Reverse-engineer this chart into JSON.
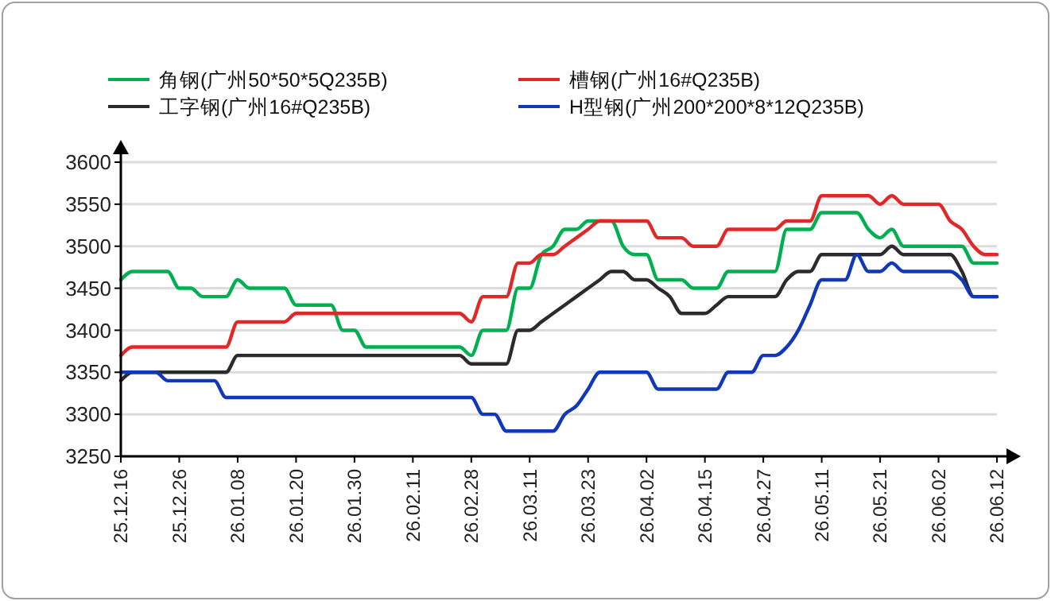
{
  "chart_data": {
    "type": "line",
    "categories": [
      "25.12.16",
      null,
      null,
      null,
      null,
      "25.12.26",
      null,
      null,
      null,
      null,
      "26.01.08",
      null,
      null,
      null,
      null,
      "26.01.20",
      null,
      null,
      null,
      null,
      "26.01.30",
      null,
      null,
      null,
      null,
      "26.02.11",
      null,
      null,
      null,
      null,
      "26.02.28",
      null,
      null,
      null,
      null,
      "26.03.11",
      null,
      null,
      null,
      null,
      "26.03.23",
      null,
      null,
      null,
      null,
      "26.04.02",
      null,
      null,
      null,
      null,
      "26.04.15",
      null,
      null,
      null,
      null,
      "26.04.27",
      null,
      null,
      null,
      null,
      "26.05.11",
      null,
      null,
      null,
      null,
      "26.05.21",
      null,
      null,
      null,
      null,
      "26.06.02",
      null,
      null,
      null,
      null,
      "26.06.12"
    ],
    "series": [
      {
        "name": "角钢(广州50*50*5Q235B)",
        "color": "#00b050",
        "values": [
          3460,
          3470,
          3470,
          3470,
          3470,
          3450,
          3450,
          3440,
          3440,
          3440,
          3460,
          3450,
          3450,
          3450,
          3450,
          3430,
          3430,
          3430,
          3430,
          3400,
          3400,
          3380,
          3380,
          3380,
          3380,
          3380,
          3380,
          3380,
          3380,
          3380,
          3370,
          3400,
          3400,
          3400,
          3450,
          3450,
          3490,
          3500,
          3520,
          3520,
          3530,
          3530,
          3530,
          3500,
          3490,
          3490,
          3460,
          3460,
          3460,
          3450,
          3450,
          3450,
          3470,
          3470,
          3470,
          3470,
          3470,
          3520,
          3520,
          3520,
          3540,
          3540,
          3540,
          3540,
          3520,
          3510,
          3520,
          3500,
          3500,
          3500,
          3500,
          3500,
          3500,
          3480,
          3480,
          3480
        ]
      },
      {
        "name": "槽钢(广州16#Q235B)",
        "color": "#e02828",
        "values": [
          3370,
          3380,
          3380,
          3380,
          3380,
          3380,
          3380,
          3380,
          3380,
          3380,
          3410,
          3410,
          3410,
          3410,
          3410,
          3420,
          3420,
          3420,
          3420,
          3420,
          3420,
          3420,
          3420,
          3420,
          3420,
          3420,
          3420,
          3420,
          3420,
          3420,
          3410,
          3440,
          3440,
          3440,
          3480,
          3480,
          3490,
          3490,
          3500,
          3510,
          3520,
          3530,
          3530,
          3530,
          3530,
          3530,
          3510,
          3510,
          3510,
          3500,
          3500,
          3500,
          3520,
          3520,
          3520,
          3520,
          3520,
          3530,
          3530,
          3530,
          3560,
          3560,
          3560,
          3560,
          3560,
          3550,
          3560,
          3550,
          3550,
          3550,
          3550,
          3530,
          3520,
          3500,
          3490,
          3490
        ]
      },
      {
        "name": "工字钢(广州16#Q235B)",
        "color": "#2b2b2b",
        "values": [
          3340,
          3350,
          3350,
          3350,
          3350,
          3350,
          3350,
          3350,
          3350,
          3350,
          3370,
          3370,
          3370,
          3370,
          3370,
          3370,
          3370,
          3370,
          3370,
          3370,
          3370,
          3370,
          3370,
          3370,
          3370,
          3370,
          3370,
          3370,
          3370,
          3370,
          3360,
          3360,
          3360,
          3360,
          3400,
          3400,
          3410,
          3420,
          3430,
          3440,
          3450,
          3460,
          3470,
          3470,
          3460,
          3460,
          3450,
          3440,
          3420,
          3420,
          3420,
          3430,
          3440,
          3440,
          3440,
          3440,
          3440,
          3460,
          3470,
          3470,
          3490,
          3490,
          3490,
          3490,
          3490,
          3490,
          3500,
          3490,
          3490,
          3490,
          3490,
          3490,
          3470,
          3440,
          3440,
          3440
        ]
      },
      {
        "name": "H型钢(广州200*200*8*12Q235B)",
        "color": "#1038b8",
        "values": [
          3350,
          3350,
          3350,
          3350,
          3340,
          3340,
          3340,
          3340,
          3340,
          3320,
          3320,
          3320,
          3320,
          3320,
          3320,
          3320,
          3320,
          3320,
          3320,
          3320,
          3320,
          3320,
          3320,
          3320,
          3320,
          3320,
          3320,
          3320,
          3320,
          3320,
          3320,
          3300,
          3300,
          3280,
          3280,
          3280,
          3280,
          3280,
          3300,
          3310,
          3330,
          3350,
          3350,
          3350,
          3350,
          3350,
          3330,
          3330,
          3330,
          3330,
          3330,
          3330,
          3350,
          3350,
          3350,
          3370,
          3370,
          3380,
          3400,
          3430,
          3460,
          3460,
          3460,
          3490,
          3470,
          3470,
          3480,
          3470,
          3470,
          3470,
          3470,
          3470,
          3460,
          3440,
          3440,
          3440
        ]
      }
    ],
    "ylim": [
      3250,
      3600
    ],
    "yticks": [
      3250,
      3300,
      3350,
      3400,
      3450,
      3500,
      3550,
      3600
    ],
    "grid": "y",
    "legend": "top",
    "marker": "none",
    "line_style": "solid"
  }
}
